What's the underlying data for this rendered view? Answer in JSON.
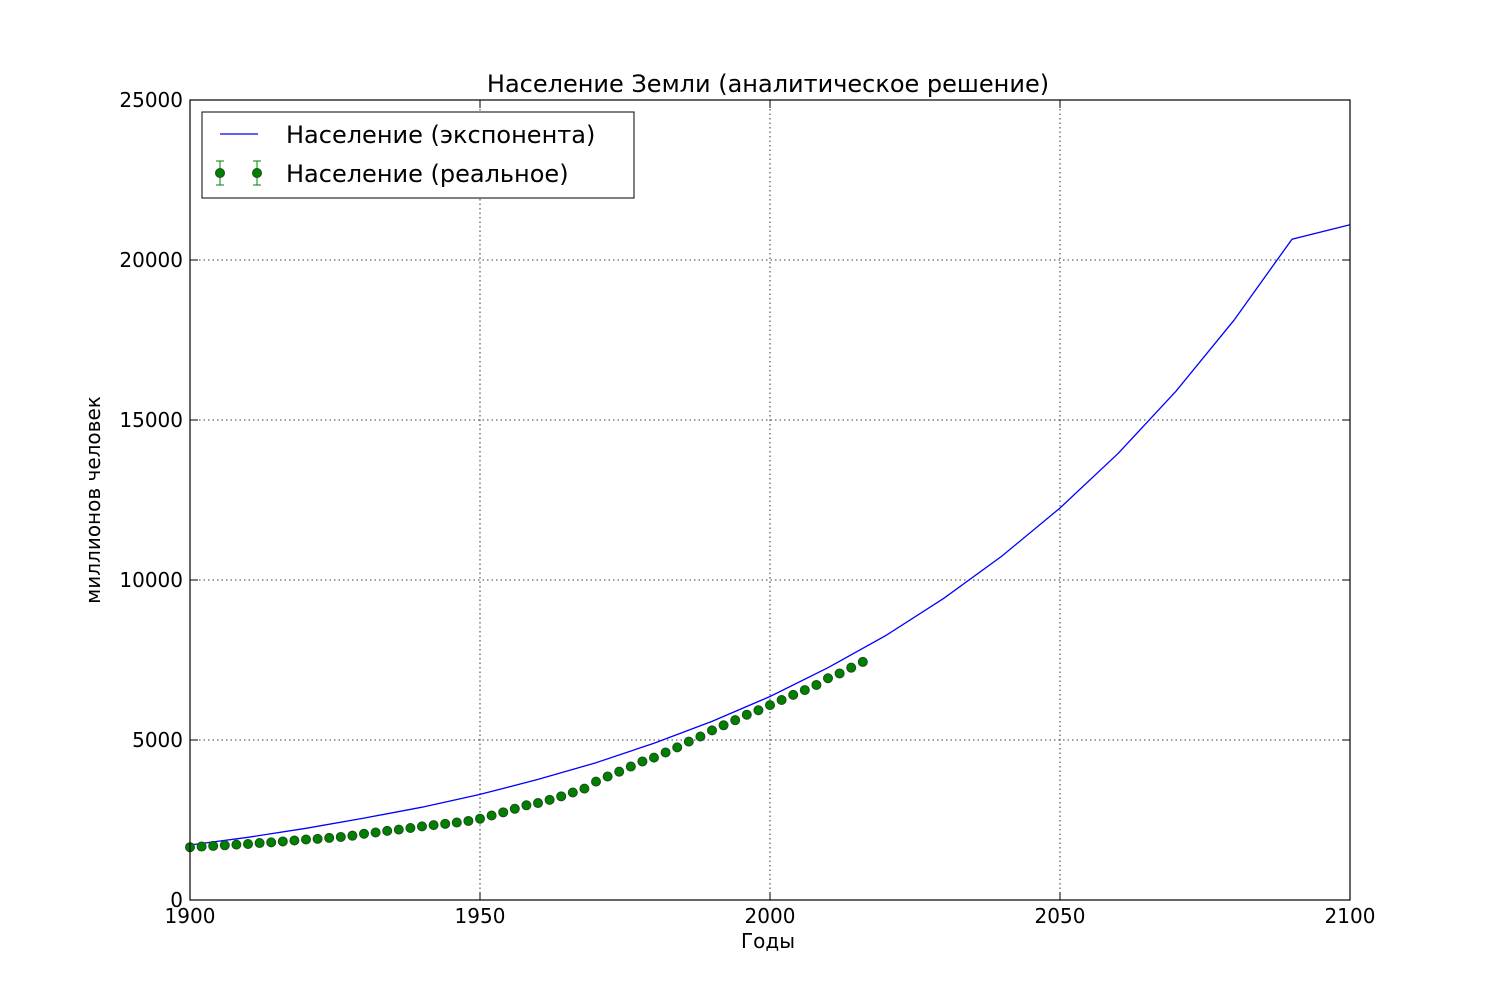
{
  "chart_data": {
    "type": "line",
    "title": "Население Земли (аналитическое решение)",
    "xlabel": "Годы",
    "ylabel": "миллионов человек",
    "xlim": [
      1900,
      2100
    ],
    "ylim": [
      0,
      25000
    ],
    "xticks": [
      "1900",
      "1950",
      "2000",
      "2050",
      "2100"
    ],
    "yticks": [
      "0",
      "5000",
      "10000",
      "15000",
      "20000",
      "25000"
    ],
    "grid": true,
    "legend_position": "top-left",
    "colors": {
      "model": "#0000ff",
      "observed": "#008000",
      "observed_edge": "#1a4d1a"
    },
    "series": [
      {
        "name": "Население (экспонента)",
        "kind": "line",
        "x": [
          1900,
          1910,
          1920,
          1930,
          1940,
          1950,
          1960,
          1970,
          1980,
          1990,
          2000,
          2010,
          2020,
          2030,
          2040,
          2050,
          2060,
          2070,
          2080,
          2090,
          2100
        ],
        "y": [
          1720,
          1960,
          2240,
          2560,
          2900,
          3300,
          3770,
          4290,
          4900,
          5580,
          6360,
          7260,
          8270,
          9430,
          10750,
          12250,
          13950,
          15900,
          18120,
          20650,
          21100
        ]
      },
      {
        "name": "Население (реальное)",
        "kind": "errorbar",
        "x": [
          1900,
          1902,
          1904,
          1906,
          1908,
          1910,
          1912,
          1914,
          1916,
          1918,
          1920,
          1922,
          1924,
          1926,
          1928,
          1930,
          1932,
          1934,
          1936,
          1938,
          1940,
          1942,
          1944,
          1946,
          1948,
          1950,
          1952,
          1954,
          1956,
          1958,
          1960,
          1962,
          1964,
          1966,
          1968,
          1970,
          1972,
          1974,
          1976,
          1978,
          1980,
          1982,
          1984,
          1986,
          1988,
          1990,
          1992,
          1994,
          1996,
          1998,
          2000,
          2002,
          2004,
          2006,
          2008,
          2010,
          2012,
          2014,
          2016
        ],
        "y": [
          1650,
          1670,
          1690,
          1710,
          1730,
          1750,
          1780,
          1800,
          1830,
          1860,
          1890,
          1910,
          1940,
          1970,
          2010,
          2070,
          2110,
          2160,
          2200,
          2250,
          2300,
          2340,
          2380,
          2420,
          2470,
          2540,
          2640,
          2740,
          2850,
          2960,
          3030,
          3130,
          3240,
          3360,
          3480,
          3700,
          3860,
          4010,
          4170,
          4330,
          4450,
          4610,
          4770,
          4950,
          5110,
          5300,
          5460,
          5620,
          5790,
          5930,
          6090,
          6250,
          6410,
          6560,
          6720,
          6930,
          7080,
          7260,
          7440
        ],
        "yerr": 120
      }
    ]
  }
}
